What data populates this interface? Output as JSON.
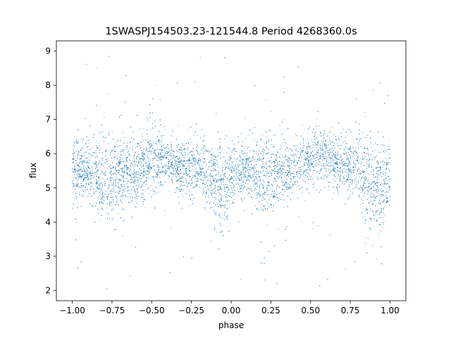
{
  "chart_data": {
    "type": "scatter",
    "title": "1SWASPJ154503.23-121544.8 Period 4268360.0s",
    "xlabel": "phase",
    "ylabel": "flux",
    "xlim": [
      -1.1,
      1.1
    ],
    "ylim": [
      1.7,
      9.3
    ],
    "xticks": [
      -1.0,
      -0.75,
      -0.5,
      -0.25,
      0.0,
      0.25,
      0.5,
      0.75,
      1.0
    ],
    "xtick_labels": [
      "−1.00",
      "−0.75",
      "−0.50",
      "−0.25",
      "0.00",
      "0.25",
      "0.50",
      "0.75",
      "1.00"
    ],
    "yticks": [
      2,
      3,
      4,
      5,
      6,
      7,
      8,
      9
    ],
    "ytick_labels": [
      "2",
      "3",
      "4",
      "5",
      "6",
      "7",
      "8",
      "9"
    ],
    "grid": false,
    "marker_color": "#1f77b4",
    "series": [
      {
        "x_range": [
          -1.0,
          1.0
        ],
        "profile_x": [
          -1.0,
          -0.95,
          -0.9,
          -0.85,
          -0.8,
          -0.75,
          -0.7,
          -0.65,
          -0.6,
          -0.55,
          -0.5,
          -0.45,
          -0.4,
          -0.35,
          -0.3,
          -0.25,
          -0.2,
          -0.15,
          -0.1,
          -0.05,
          0.0,
          0.05,
          0.1,
          0.15,
          0.2,
          0.25,
          0.3,
          0.35,
          0.4,
          0.45,
          0.5,
          0.55,
          0.6,
          0.65,
          0.7,
          0.75,
          0.8,
          0.85,
          0.9,
          0.95,
          1.0
        ],
        "profile_mean": [
          5.4,
          5.5,
          5.5,
          5.5,
          5.2,
          5.3,
          5.4,
          5.5,
          5.5,
          5.7,
          5.8,
          5.9,
          5.8,
          5.7,
          5.6,
          5.6,
          5.6,
          5.4,
          5.2,
          5.0,
          5.2,
          5.4,
          5.5,
          5.4,
          5.3,
          5.4,
          5.5,
          5.5,
          5.6,
          5.7,
          5.8,
          5.9,
          5.8,
          5.7,
          5.7,
          5.6,
          5.6,
          5.2,
          5.1,
          4.9,
          5.2
        ],
        "profile_spread": [
          0.5,
          0.4,
          0.4,
          0.5,
          0.7,
          0.6,
          0.5,
          0.5,
          0.5,
          0.5,
          0.5,
          0.4,
          0.4,
          0.4,
          0.4,
          0.4,
          0.4,
          0.5,
          0.6,
          0.6,
          0.5,
          0.4,
          0.4,
          0.5,
          0.6,
          0.5,
          0.4,
          0.4,
          0.4,
          0.4,
          0.4,
          0.4,
          0.4,
          0.4,
          0.4,
          0.4,
          0.5,
          0.6,
          0.6,
          0.6,
          0.5
        ],
        "flux_range": [
          2.0,
          9.0
        ],
        "n_points": 9000
      }
    ]
  }
}
